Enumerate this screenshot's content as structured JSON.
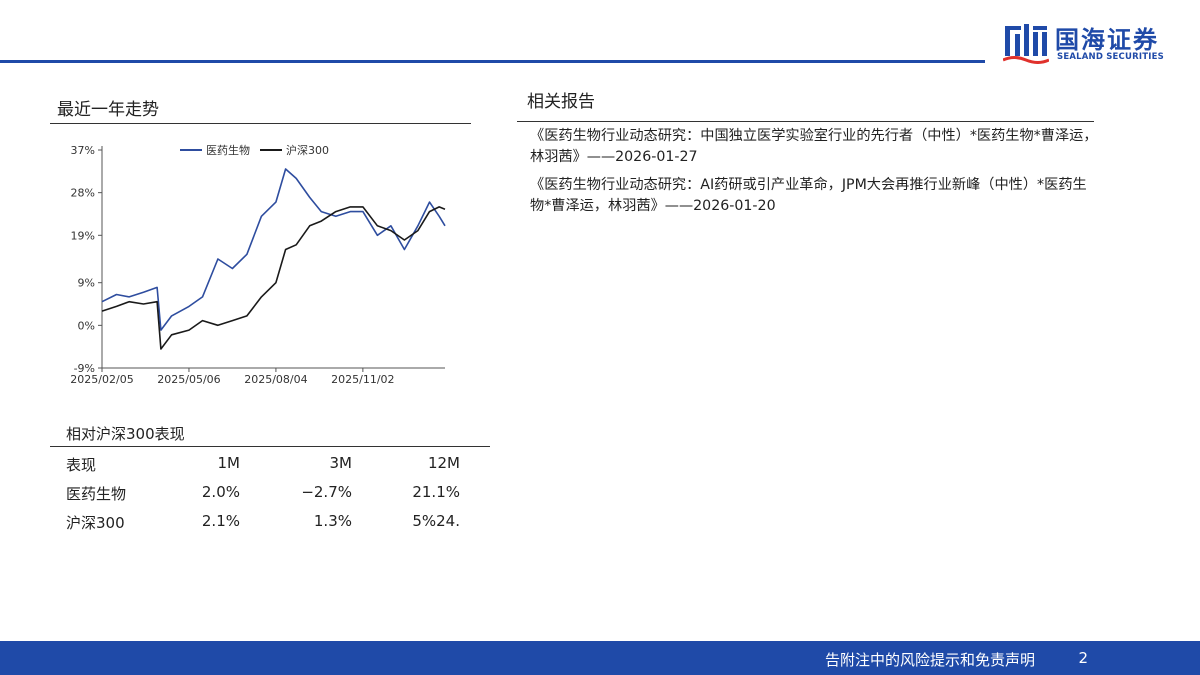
{
  "brand": {
    "name_cn": "国海证券",
    "name_en": "SEALAND SECURITIES",
    "color": "#1f4aa8"
  },
  "trend_section": {
    "title": "最近一年走势"
  },
  "related_section": {
    "title": "相关报告",
    "reports": [
      "《医药生物行业动态研究：中国独立医学实验室行业的先行者（中性）*医药生物*曹泽运，林羽茜》——2026-01-27",
      "《医药生物行业动态研究：AI药研或引产业革命，JPM大会再推行业新峰（中性）*医药生物*曹泽运，林羽茜》——2026-01-20"
    ]
  },
  "chart_data": {
    "type": "line",
    "title": "",
    "xlabel": "",
    "ylabel": "",
    "y_tick_labels": [
      "37%",
      "28%",
      "19%",
      "9%",
      "0%",
      "-9%"
    ],
    "y_ticks": [
      37,
      28,
      19,
      9,
      0,
      -9
    ],
    "ylim": [
      -9,
      37
    ],
    "x_tick_labels": [
      "2025/02/05",
      "2025/05/06",
      "2025/08/04",
      "2025/11/02"
    ],
    "x_ticks": [
      "2025-02-05",
      "2025-05-06",
      "2025-08-04",
      "2025-11-02"
    ],
    "xlim": [
      "2025-02-05",
      "2026-01-26"
    ],
    "legend_position": "top",
    "grid": false,
    "series": [
      {
        "name": "医药生物",
        "color": "#2e4d9f",
        "x": [
          "2025-02-05",
          "2025-02-20",
          "2025-03-05",
          "2025-03-20",
          "2025-04-03",
          "2025-04-07",
          "2025-04-18",
          "2025-05-06",
          "2025-05-20",
          "2025-06-05",
          "2025-06-20",
          "2025-07-05",
          "2025-07-20",
          "2025-08-04",
          "2025-08-14",
          "2025-08-25",
          "2025-09-08",
          "2025-09-20",
          "2025-10-05",
          "2025-10-20",
          "2025-11-02",
          "2025-11-17",
          "2025-12-01",
          "2025-12-15",
          "2025-12-29",
          "2026-01-10",
          "2026-01-20",
          "2026-01-26"
        ],
        "values": [
          5.0,
          6.5,
          6.0,
          7.0,
          8.0,
          -1.0,
          2.0,
          4.0,
          6.0,
          14.0,
          12.0,
          15.0,
          23.0,
          26.0,
          33.0,
          31.0,
          27.0,
          24.0,
          23.0,
          24.0,
          24.0,
          19.0,
          21.0,
          16.0,
          21.0,
          26.0,
          23.0,
          21.0
        ]
      },
      {
        "name": "沪深300",
        "color": "#1a1a1a",
        "x": [
          "2025-02-05",
          "2025-02-20",
          "2025-03-05",
          "2025-03-20",
          "2025-04-03",
          "2025-04-07",
          "2025-04-18",
          "2025-05-06",
          "2025-05-20",
          "2025-06-05",
          "2025-06-20",
          "2025-07-05",
          "2025-07-20",
          "2025-08-04",
          "2025-08-14",
          "2025-08-25",
          "2025-09-08",
          "2025-09-20",
          "2025-10-05",
          "2025-10-20",
          "2025-11-02",
          "2025-11-17",
          "2025-12-01",
          "2025-12-15",
          "2025-12-29",
          "2026-01-10",
          "2026-01-20",
          "2026-01-26"
        ],
        "values": [
          3.0,
          4.0,
          5.0,
          4.5,
          5.0,
          -5.0,
          -2.0,
          -1.0,
          1.0,
          0.0,
          1.0,
          2.0,
          6.0,
          9.0,
          16.0,
          17.0,
          21.0,
          22.0,
          24.0,
          25.0,
          25.0,
          21.0,
          20.0,
          18.0,
          20.0,
          24.0,
          25.0,
          24.5
        ]
      }
    ]
  },
  "performance": {
    "title": "相对沪深300表现",
    "columns": [
      "表现",
      "1M",
      "3M",
      "12M"
    ],
    "rows": [
      [
        "医药生物",
        "2.0%",
        "−2.7%",
        "21.1%"
      ],
      [
        "沪深300",
        "2.1%",
        "1.3%",
        "5%24."
      ]
    ]
  },
  "footer": {
    "disclaimer": "告附注中的风险提示和免责声明",
    "page": "2"
  }
}
